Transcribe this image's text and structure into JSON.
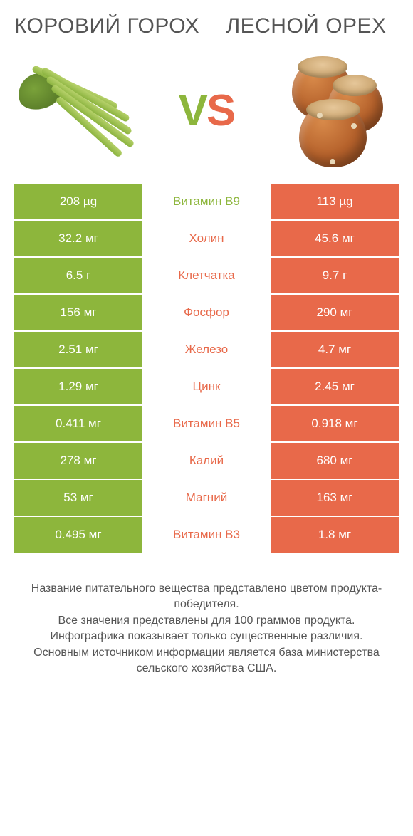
{
  "colors": {
    "green": "#8db63c",
    "orange": "#e8694a",
    "text": "#555555",
    "white": "#ffffff"
  },
  "header": {
    "left_title": "КОРОВИЙ ГОРОХ",
    "right_title": "ЛЕСНОЙ ОРЕХ",
    "vs": {
      "v": "V",
      "s": "S"
    }
  },
  "comparison": {
    "left_color": "#8db63c",
    "right_color": "#e8694a",
    "rows": [
      {
        "left": "208 µg",
        "label": "Витамин B9",
        "right": "113 µg",
        "winner": "left"
      },
      {
        "left": "32.2 мг",
        "label": "Холин",
        "right": "45.6 мг",
        "winner": "right"
      },
      {
        "left": "6.5 г",
        "label": "Клетчатка",
        "right": "9.7 г",
        "winner": "right"
      },
      {
        "left": "156 мг",
        "label": "Фосфор",
        "right": "290 мг",
        "winner": "right"
      },
      {
        "left": "2.51 мг",
        "label": "Железо",
        "right": "4.7 мг",
        "winner": "right"
      },
      {
        "left": "1.29 мг",
        "label": "Цинк",
        "right": "2.45 мг",
        "winner": "right"
      },
      {
        "left": "0.411 мг",
        "label": "Витамин B5",
        "right": "0.918 мг",
        "winner": "right"
      },
      {
        "left": "278 мг",
        "label": "Калий",
        "right": "680 мг",
        "winner": "right"
      },
      {
        "left": "53 мг",
        "label": "Магний",
        "right": "163 мг",
        "winner": "right"
      },
      {
        "left": "0.495 мг",
        "label": "Витамин B3",
        "right": "1.8 мг",
        "winner": "right"
      }
    ]
  },
  "footer": {
    "line1": "Название питательного вещества представлено цветом продукта-победителя.",
    "line2": "Все значения представлены для 100 граммов продукта.",
    "line3": "Инфографика показывает только существенные различия.",
    "line4": "Основным источником информации является база министерства сельского хозяйства США."
  }
}
